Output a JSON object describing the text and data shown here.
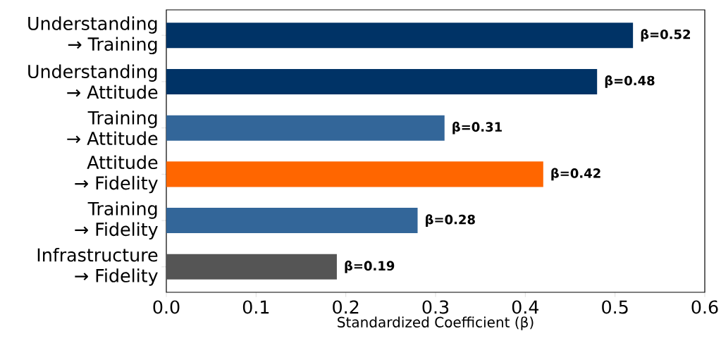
{
  "chart_data": {
    "type": "bar",
    "orientation": "horizontal",
    "xlabel": "Standardized Coefficient (β)",
    "categories": [
      "Understanding → Training",
      "Understanding → Attitude",
      "Training → Attitude",
      "Attitude → Fidelity",
      "Training → Fidelity",
      "Infrastructure → Fidelity"
    ],
    "values": [
      0.52,
      0.48,
      0.31,
      0.42,
      0.28,
      0.19
    ],
    "colors": [
      "#003366",
      "#003366",
      "#336699",
      "#ff6600",
      "#336699",
      "#555555"
    ],
    "value_labels": [
      "β=0.52",
      "β=0.48",
      "β=0.31",
      "β=0.42",
      "β=0.28",
      "β=0.19"
    ],
    "xlim": [
      0,
      0.6
    ],
    "xticks": [
      {
        "value": 0,
        "label": "0.0"
      },
      {
        "value": 0.1,
        "label": "0.1"
      },
      {
        "value": 0.2,
        "label": "0.2"
      },
      {
        "value": 0.3,
        "label": "0.3"
      },
      {
        "value": 0.4,
        "label": "0.4"
      },
      {
        "value": 0.5,
        "label": "0.5"
      },
      {
        "value": 0.6,
        "label": "0.6"
      }
    ],
    "grid": false
  }
}
